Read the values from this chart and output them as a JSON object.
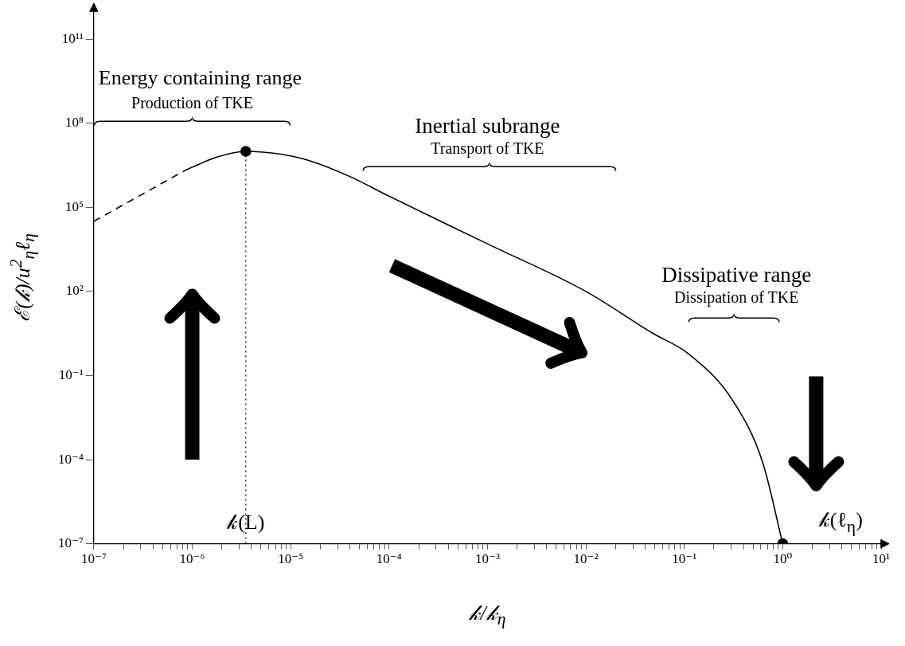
{
  "chart_data": {
    "type": "line",
    "xlabel": "𝓀/𝓀$_{η}$",
    "ylabel": "ℰ(𝓀)/u$^{2}$$_{η}$ℓ$_{η}$",
    "log": "xy",
    "grid": false,
    "legend": false,
    "marker": "none",
    "xlim": [
      1e-07,
      10
    ],
    "ylim": [
      1e-07,
      1000000000000.0
    ],
    "xticks": [
      {
        "value": 1e-07,
        "label": "10⁻⁷"
      },
      {
        "value": 2e-07,
        "label": null
      },
      {
        "value": 3e-07,
        "label": null
      },
      {
        "value": 4e-07,
        "label": null
      },
      {
        "value": 5e-07,
        "label": null
      },
      {
        "value": 6e-07,
        "label": null
      },
      {
        "value": 7e-07,
        "label": null
      },
      {
        "value": 8e-07,
        "label": null
      },
      {
        "value": 9e-07,
        "label": null
      },
      {
        "value": 1e-06,
        "label": "10⁻⁶"
      },
      {
        "value": 2e-06,
        "label": null
      },
      {
        "value": 3e-06,
        "label": null
      },
      {
        "value": 4e-06,
        "label": null
      },
      {
        "value": 5e-06,
        "label": null
      },
      {
        "value": 6e-06,
        "label": null
      },
      {
        "value": 7e-06,
        "label": null
      },
      {
        "value": 8e-06,
        "label": null
      },
      {
        "value": 9e-06,
        "label": null
      },
      {
        "value": 1e-05,
        "label": "10⁻⁵"
      },
      {
        "value": 2e-05,
        "label": null
      },
      {
        "value": 3e-05,
        "label": null
      },
      {
        "value": 4e-05,
        "label": null
      },
      {
        "value": 5e-05,
        "label": null
      },
      {
        "value": 6e-05,
        "label": null
      },
      {
        "value": 7e-05,
        "label": null
      },
      {
        "value": 8e-05,
        "label": null
      },
      {
        "value": 9e-05,
        "label": null
      },
      {
        "value": 0.0001,
        "label": "10⁻⁴"
      },
      {
        "value": 0.0002,
        "label": null
      },
      {
        "value": 0.0003,
        "label": null
      },
      {
        "value": 0.0004,
        "label": null
      },
      {
        "value": 0.0005,
        "label": null
      },
      {
        "value": 0.0006,
        "label": null
      },
      {
        "value": 0.0007,
        "label": null
      },
      {
        "value": 0.0008,
        "label": null
      },
      {
        "value": 0.0009,
        "label": null
      },
      {
        "value": 0.001,
        "label": "10⁻³"
      },
      {
        "value": 0.002,
        "label": null
      },
      {
        "value": 0.003,
        "label": null
      },
      {
        "value": 0.004,
        "label": null
      },
      {
        "value": 0.005,
        "label": null
      },
      {
        "value": 0.006,
        "label": null
      },
      {
        "value": 0.007,
        "label": null
      },
      {
        "value": 0.008,
        "label": null
      },
      {
        "value": 0.009,
        "label": null
      },
      {
        "value": 0.01,
        "label": "10⁻²"
      },
      {
        "value": 0.02,
        "label": null
      },
      {
        "value": 0.03,
        "label": null
      },
      {
        "value": 0.04,
        "label": null
      },
      {
        "value": 0.05,
        "label": null
      },
      {
        "value": 0.06,
        "label": null
      },
      {
        "value": 0.07,
        "label": null
      },
      {
        "value": 0.08,
        "label": null
      },
      {
        "value": 0.09,
        "label": null
      },
      {
        "value": 0.1,
        "label": "10⁻¹"
      },
      {
        "value": 0.2,
        "label": null
      },
      {
        "value": 0.3,
        "label": null
      },
      {
        "value": 0.4,
        "label": null
      },
      {
        "value": 0.5,
        "label": null
      },
      {
        "value": 0.6,
        "label": null
      },
      {
        "value": 0.7,
        "label": null
      },
      {
        "value": 0.8,
        "label": null
      },
      {
        "value": 0.9,
        "label": null
      },
      {
        "value": 1,
        "label": "10⁰"
      },
      {
        "value": 2,
        "label": null
      },
      {
        "value": 3,
        "label": null
      },
      {
        "value": 4,
        "label": null
      },
      {
        "value": 5,
        "label": null
      },
      {
        "value": 6,
        "label": null
      },
      {
        "value": 7,
        "label": null
      },
      {
        "value": 8,
        "label": null
      },
      {
        "value": 9,
        "label": null
      },
      {
        "value": 10,
        "label": "10¹"
      }
    ],
    "yticks": [
      {
        "value": 1e-07,
        "label": "10⁻⁷"
      },
      {
        "value": 0.0001,
        "label": "10⁻⁴"
      },
      {
        "value": 0.1,
        "label": "10⁻¹"
      },
      {
        "value": 100,
        "label": "10²"
      },
      {
        "value": 100000.0,
        "label": "10⁵"
      },
      {
        "value": 100000000.0,
        "label": "10⁸"
      },
      {
        "value": 100000000000.0,
        "label": "10¹¹"
      }
    ],
    "series": [
      {
        "color": "#000000",
        "line_style": "dashed",
        "x": [
          1e-07,
          8.7e-07
        ],
        "values": [
          32000.0,
          2200000.0
        ]
      },
      {
        "color": "#000000",
        "line_style": "solid",
        "x": [
          8.7e-07,
          1.8e-06,
          3.5e-06,
          7.9e-06,
          1.6e-05,
          4e-05,
          0.0001,
          0.001,
          0.01,
          0.048,
          0.11,
          0.31,
          0.63,
          1
        ],
        "values": [
          2200000.0,
          6300000.0,
          10000000.0,
          7900000.0,
          4500000.0,
          1260000.0,
          250000.0,
          5000.0,
          100,
          3.2,
          0.6,
          0.013,
          7.4e-05,
          1e-07
        ]
      },
      {
        "type": "scatter",
        "color": "#000000",
        "marker": "circle",
        "x": [
          3.5e-06,
          1
        ],
        "values": [
          10000000.0,
          1e-07
        ]
      }
    ],
    "ref_lines": [
      {
        "axis": "x",
        "value": 3.5e-06,
        "color": "#000000",
        "line_style": "dotted"
      }
    ],
    "annotations": [
      "Energy containing range",
      "Production of TKE",
      "Inertial subrange",
      "Transport of TKE",
      "Dissipative range",
      "Dissipation of TKE",
      {
        "text": "𝓀(L)",
        "x": 3.5e-06,
        "y": 5.6e-07
      },
      "𝓀(ℓ$_{η}$)"
    ]
  }
}
